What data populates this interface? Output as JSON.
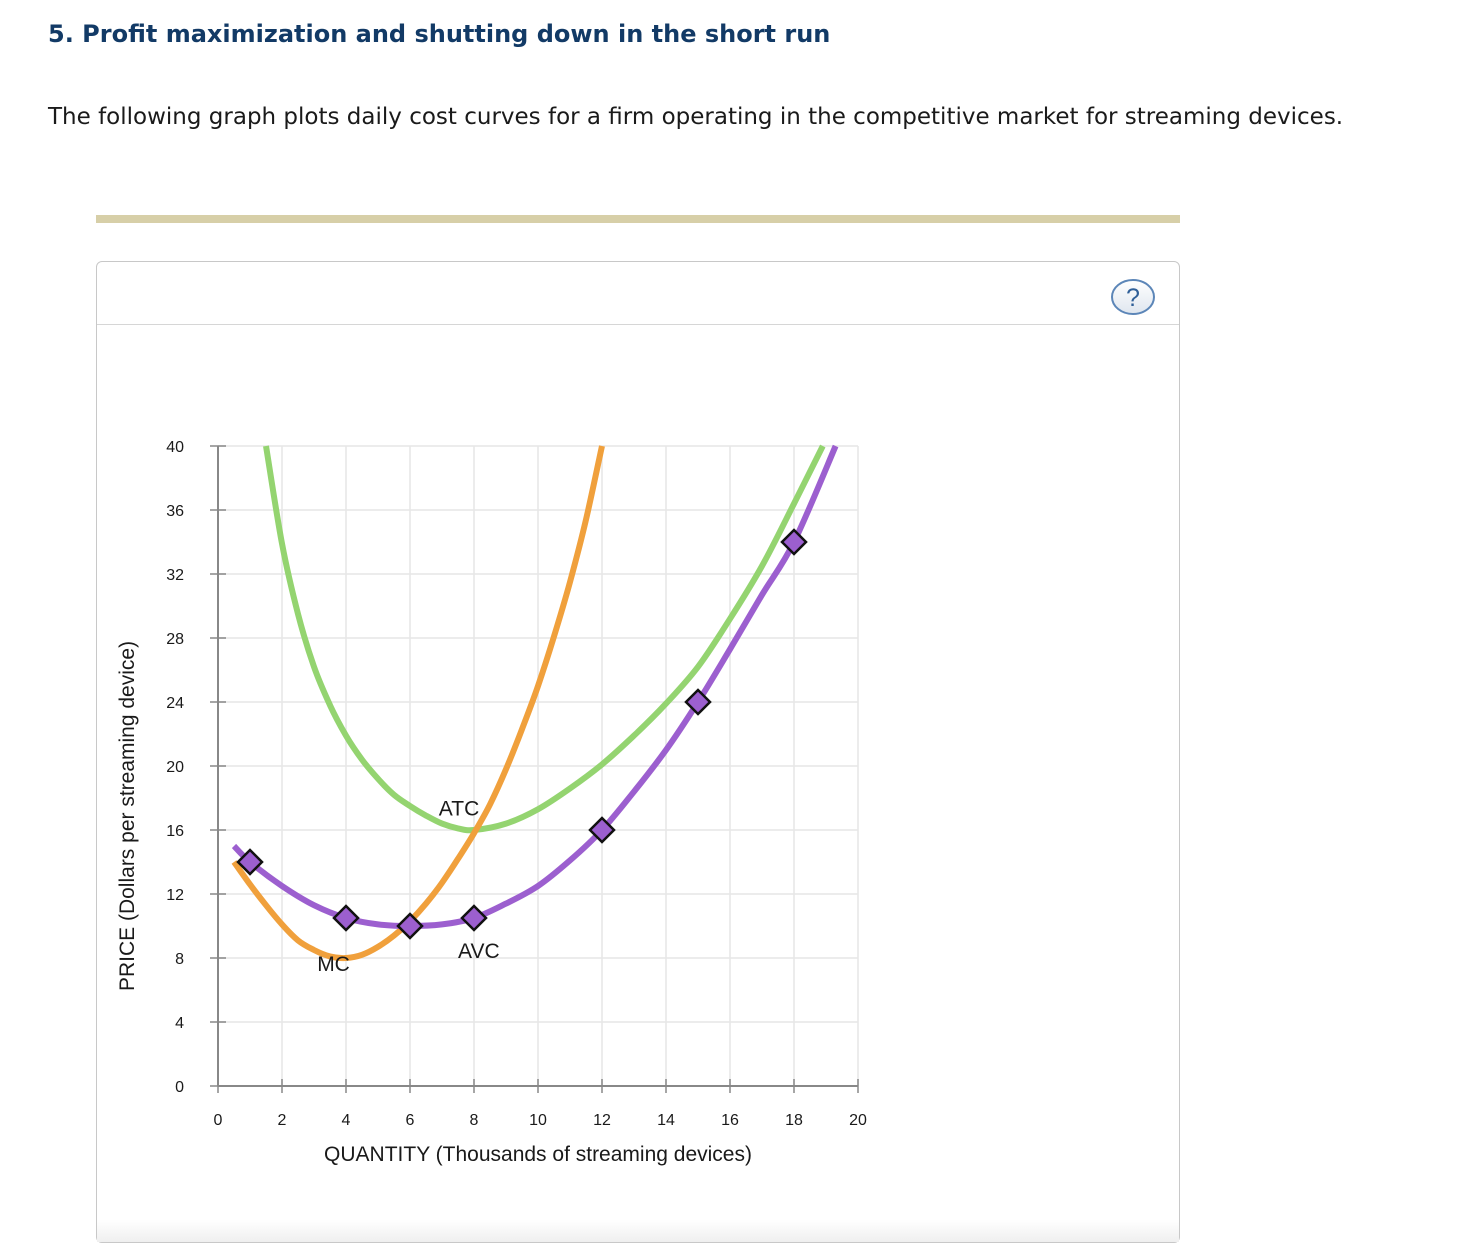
{
  "header": {
    "title": "5. Profit maximization and shutting down in the short run",
    "intro": "The following graph plots daily cost curves for a firm operating in the competitive market for streaming devices."
  },
  "help": {
    "label": "?"
  },
  "chart_data": {
    "type": "line",
    "xlabel": "QUANTITY (Thousands of streaming devices)",
    "ylabel": "PRICE (Dollars per streaming device)",
    "xlim": [
      0,
      20
    ],
    "ylim": [
      0,
      40
    ],
    "x_ticks": [
      0,
      2,
      4,
      6,
      8,
      10,
      12,
      14,
      16,
      18,
      20
    ],
    "y_ticks": [
      0,
      4,
      8,
      12,
      16,
      20,
      24,
      28,
      32,
      36,
      40
    ],
    "grid": true,
    "legend": "none",
    "colors": {
      "ATC": "#94d470",
      "MC": "#f0a03c",
      "AVC": "#9c5fcf",
      "marker": "#9c5fcf"
    },
    "series": [
      {
        "name": "ATC",
        "x": [
          1.5,
          2,
          2.5,
          3,
          3.5,
          4,
          4.5,
          5,
          5.5,
          6,
          6.5,
          7,
          7.5,
          8,
          9,
          10,
          11,
          12,
          13,
          14,
          15,
          16,
          17,
          18,
          18.9
        ],
        "y": [
          40,
          33.9,
          29.5,
          26.2,
          23.8,
          21.9,
          20.4,
          19.2,
          18.2,
          17.5,
          16.9,
          16.4,
          16.1,
          16.0,
          16.4,
          17.3,
          18.6,
          20.1,
          21.9,
          23.9,
          26.2,
          29.2,
          32.5,
          36.4,
          40
        ]
      },
      {
        "name": "MC",
        "x": [
          0.5,
          1,
          1.5,
          2,
          2.5,
          3,
          3.5,
          4,
          4.5,
          5,
          5.5,
          6,
          6.5,
          7,
          7.5,
          8,
          8.5,
          9,
          9.5,
          10,
          10.5,
          11,
          11.5,
          12
        ],
        "y": [
          14.0,
          12.6,
          11.3,
          10.1,
          9.1,
          8.5,
          8.1,
          8.0,
          8.2,
          8.7,
          9.4,
          10.3,
          11.4,
          12.7,
          14.2,
          15.8,
          17.6,
          19.8,
          22.3,
          25.0,
          28.1,
          31.5,
          35.4,
          40
        ]
      },
      {
        "name": "AVC",
        "x": [
          0.5,
          1,
          2,
          3,
          4,
          5,
          6,
          7,
          8,
          9,
          10,
          11,
          12,
          13,
          14,
          15,
          16,
          17,
          18,
          19.3
        ],
        "y": [
          15.0,
          14.0,
          12.5,
          11.3,
          10.5,
          10.1,
          10.0,
          10.1,
          10.5,
          11.4,
          12.5,
          14.1,
          16.0,
          18.4,
          21.0,
          24.0,
          27.3,
          30.7,
          34.0,
          40
        ]
      }
    ],
    "markers": {
      "series": "AVC",
      "x": [
        1,
        4,
        6,
        8,
        12,
        15,
        18
      ],
      "y": [
        14,
        10.5,
        10,
        10.5,
        16,
        24,
        34
      ]
    },
    "annotations": [
      {
        "text": "ATC",
        "x": 6.9,
        "y": 16.9
      },
      {
        "text": "MC",
        "x": 3.1,
        "y": 7.2
      },
      {
        "text": "AVC",
        "x": 7.5,
        "y": 8.0
      }
    ]
  }
}
